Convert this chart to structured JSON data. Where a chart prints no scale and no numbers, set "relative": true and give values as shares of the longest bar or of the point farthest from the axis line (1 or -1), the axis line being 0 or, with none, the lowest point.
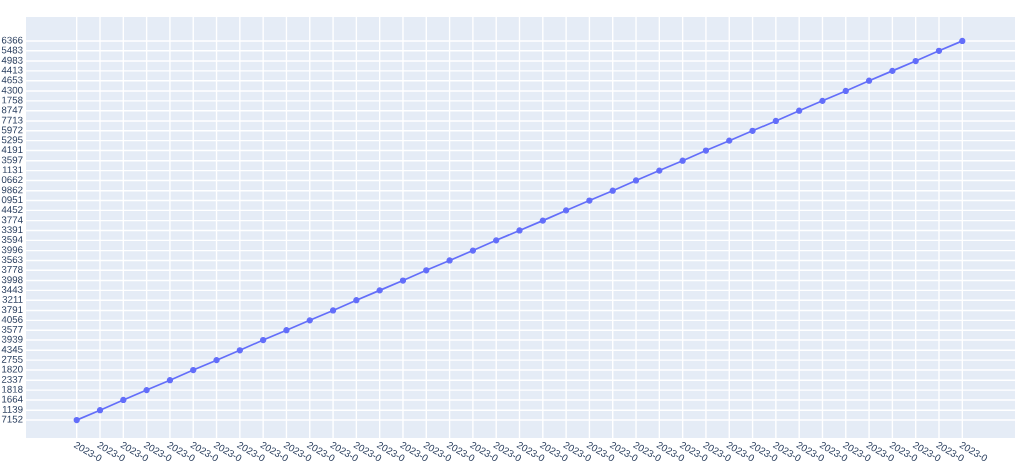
{
  "chart_data": {
    "type": "line",
    "relative": true,
    "categories": [
      "2023-0",
      "2023-0",
      "2023-0",
      "2023-0",
      "2023-0",
      "2023-0",
      "2023-0",
      "2023-0",
      "2023-0",
      "2023-0",
      "2023-0",
      "2023-0",
      "2023-0",
      "2023-0",
      "2023-0",
      "2023-0",
      "2023-0",
      "2023-0",
      "2023-0",
      "2023-0",
      "2023-0",
      "2023-0",
      "2023-0",
      "2023-0",
      "2023-0",
      "2023-0",
      "2023-0",
      "2023-0",
      "2023-0",
      "2023-0",
      "2023-0",
      "2023-0",
      "2023-0",
      "2023-0",
      "2023-0",
      "2023-0",
      "2023-0",
      "2023-0",
      "2023-0"
    ],
    "series": [
      {
        "color": "#636efa",
        "values": [
          0,
          0.026,
          0.053,
          0.079,
          0.105,
          0.132,
          0.158,
          0.184,
          0.211,
          0.237,
          0.263,
          0.289,
          0.316,
          0.342,
          0.368,
          0.395,
          0.421,
          0.447,
          0.474,
          0.5,
          0.526,
          0.553,
          0.579,
          0.605,
          0.632,
          0.658,
          0.684,
          0.711,
          0.737,
          0.763,
          0.789,
          0.816,
          0.842,
          0.868,
          0.895,
          0.921,
          0.947,
          0.974,
          1
        ]
      }
    ],
    "annotations": [
      "6366",
      "5483",
      "4983",
      "4413",
      "4653",
      "4300",
      "1758",
      "8747",
      "7713",
      "5972",
      "5295",
      "4191",
      "3597",
      "1131",
      "0662",
      "9862",
      "0951",
      "4452",
      "3774",
      "3391",
      "3594",
      "3996",
      "3563",
      "3778",
      "3998",
      "3443",
      "3211",
      "3791",
      "4056",
      "3577",
      "3939",
      "4345",
      "2755",
      "1820",
      "2337",
      "1818",
      "1664",
      "1139",
      "7152"
    ],
    "grid": true,
    "marker": "circle",
    "line_style": "solid"
  }
}
